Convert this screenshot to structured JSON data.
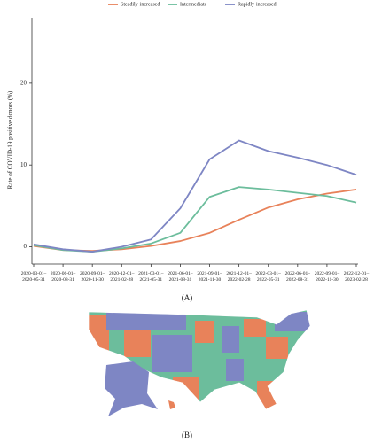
{
  "chart_data": {
    "type": "line",
    "y_label": "Rate of COVID-19 positive donors (%)",
    "categories": [
      "2020-03-01–\n2020-05-31",
      "2020-06-01–\n2020-08-31",
      "2020-09-01–\n2020-11-30",
      "2020-12-01–\n2021-02-28",
      "2021-03-01–\n2021-05-31",
      "2021-06-01–\n2021-08-31",
      "2021-09-01–\n2021-11-30",
      "2021-12-01–\n2022-02-28",
      "2022-03-01–\n2022-05-31",
      "2022-06-01–\n2022-08-31",
      "2022-09-01–\n2022-11-30",
      "2022-12-01–\n2023-02-28"
    ],
    "series": [
      {
        "name": "Steadily-increased",
        "color": "#e8825a",
        "values": [
          0.1,
          -0.4,
          -0.5,
          -0.3,
          0.1,
          0.7,
          1.7,
          3.3,
          4.8,
          5.8,
          6.5,
          7.0
        ]
      },
      {
        "name": "Intermediate",
        "color": "#6cbd9c",
        "values": [
          0.2,
          -0.4,
          -0.6,
          -0.2,
          0.4,
          1.7,
          6.1,
          7.3,
          7.0,
          6.6,
          6.2,
          5.4
        ]
      },
      {
        "name": "Rapidly-increased",
        "color": "#7e86c4",
        "values": [
          0.3,
          -0.3,
          -0.6,
          0.0,
          0.9,
          4.7,
          10.7,
          13.0,
          11.7,
          10.9,
          10.0,
          8.8
        ]
      }
    ],
    "ylim": [
      -2,
      28
    ],
    "yticks": [
      0,
      10,
      20
    ],
    "legend": "top"
  },
  "panel_labels": [
    "(A)",
    "(B)"
  ]
}
